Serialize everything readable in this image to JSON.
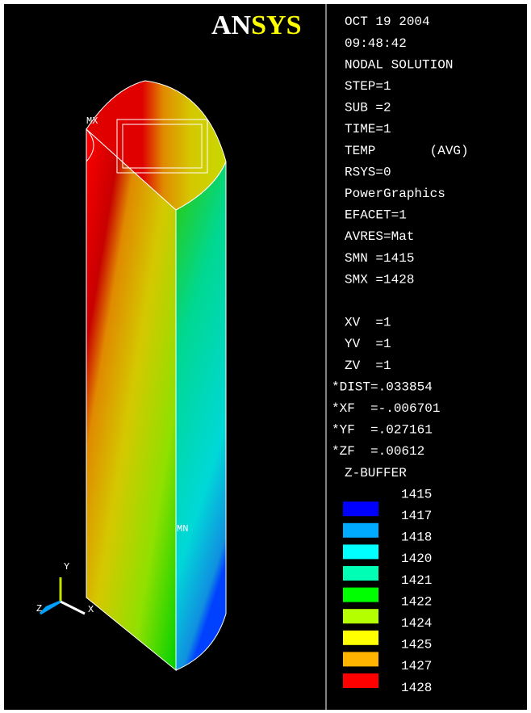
{
  "logo": {
    "first": "AN",
    "rest": "SYS"
  },
  "info": [
    "OCT 19 2004",
    "09:48:42",
    "NODAL SOLUTION",
    "STEP=1",
    "SUB =2",
    "TIME=1",
    "TEMP       (AVG)",
    "RSYS=0",
    "PowerGraphics",
    "EFACET=1",
    "AVRES=Mat",
    "SMN =1415",
    "SMX =1428"
  ],
  "view": [
    "XV  =1",
    "YV  =1",
    "ZV  =1",
    "*DIST=.033854",
    "*XF  =-.006701",
    "*YF  =.027161",
    "*ZF  =.00612",
    "Z-BUFFER"
  ],
  "legend": {
    "labels": [
      1415,
      1417,
      1418,
      1420,
      1421,
      1422,
      1424,
      1425,
      1427,
      1428
    ],
    "colors": [
      "#0000ff",
      "#00aaff",
      "#00ffff",
      "#00ffb4",
      "#00ff00",
      "#b4ff00",
      "#ffff00",
      "#ffb400",
      "#ff0000"
    ]
  },
  "model": {
    "max_label": "MX",
    "min_label": "MN"
  },
  "triad": {
    "x": "X",
    "y": "Y",
    "z": "Z"
  }
}
